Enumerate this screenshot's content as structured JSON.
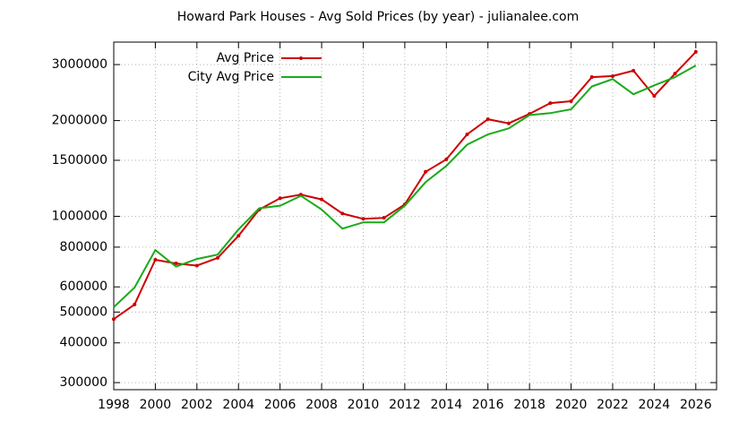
{
  "chart_data": {
    "type": "line",
    "title": "Howard Park Houses - Avg Sold Prices (by year) - julianalee.com",
    "x": [
      1998,
      1999,
      2000,
      2001,
      2002,
      2003,
      2004,
      2005,
      2006,
      2007,
      2008,
      2009,
      2010,
      2011,
      2012,
      2013,
      2014,
      2015,
      2016,
      2017,
      2018,
      2019,
      2020,
      2021,
      2022,
      2023,
      2024,
      2025,
      2026
    ],
    "series": [
      {
        "name": "Avg Price",
        "color": "#cc0000",
        "points": true,
        "values": [
          475000,
          528000,
          730000,
          711000,
          700000,
          740000,
          868000,
          1050000,
          1140000,
          1170000,
          1130000,
          1020000,
          982000,
          989000,
          1090000,
          1380000,
          1510000,
          1810000,
          2020000,
          1960000,
          2100000,
          2270000,
          2300000,
          2740000,
          2760000,
          2870000,
          2390000,
          2810000,
          3290000
        ]
      },
      {
        "name": "City Avg Price",
        "color": "#1aaa1a",
        "points": false,
        "values": [
          518000,
          597000,
          783000,
          695000,
          734000,
          758000,
          909000,
          1060000,
          1080000,
          1160000,
          1050000,
          915000,
          957000,
          957000,
          1080000,
          1280000,
          1440000,
          1680000,
          1810000,
          1890000,
          2080000,
          2110000,
          2170000,
          2560000,
          2700000,
          2420000,
          2580000,
          2740000,
          2980000
        ]
      }
    ],
    "xlim": [
      1998,
      2027
    ],
    "xticks": [
      1998,
      2000,
      2002,
      2004,
      2006,
      2008,
      2010,
      2012,
      2014,
      2016,
      2018,
      2020,
      2022,
      2024,
      2026
    ],
    "ylim": [
      285000,
      3530000
    ],
    "yscale": "log",
    "yticks": [
      300000,
      400000,
      500000,
      600000,
      800000,
      1000000,
      1500000,
      2000000,
      3000000
    ],
    "grid": true,
    "legend": "top left"
  }
}
